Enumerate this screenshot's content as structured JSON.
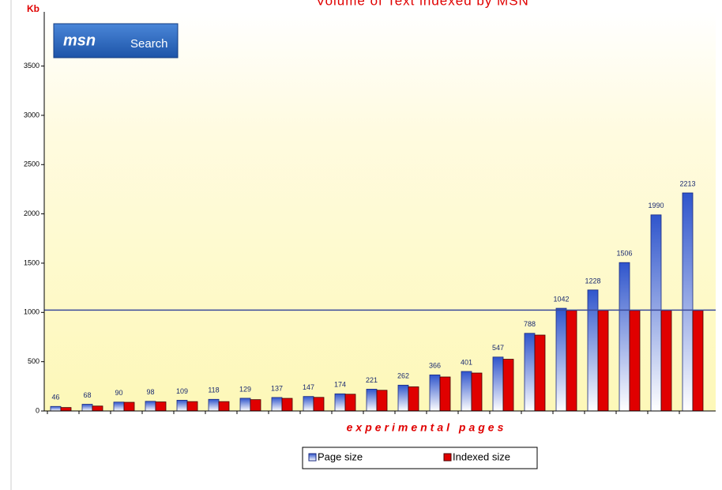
{
  "logo": {
    "brand": "msn",
    "text": "Search"
  },
  "chart_data": {
    "type": "bar",
    "title": "Volume of Text indexed by MSN",
    "y_label": "Kb",
    "x_label": "experimental pages",
    "categories": [
      null,
      null,
      null,
      null,
      null,
      null,
      null,
      null,
      null,
      null,
      null,
      null,
      null,
      null,
      null,
      null,
      null,
      null,
      null,
      null,
      null
    ],
    "series": [
      {
        "name": "Page size",
        "color": "#3a5fd0",
        "values": [
          46,
          68,
          90,
          98,
          109,
          118,
          129,
          137,
          147,
          174,
          221,
          262,
          366,
          401,
          547,
          788,
          1042,
          1228,
          1506,
          1990,
          2213
        ]
      },
      {
        "name": "Indexed size",
        "color": "#e00000",
        "values": [
          35,
          50,
          88,
          92,
          95,
          95,
          115,
          128,
          138,
          170,
          210,
          245,
          345,
          385,
          525,
          770,
          1020,
          1020,
          1020,
          1020,
          1020
        ]
      }
    ],
    "reference_line": 1024,
    "ylim": [
      0,
      4050
    ],
    "yticks": [
      0,
      500,
      1000,
      1500,
      2000,
      2500,
      3000,
      3500
    ]
  }
}
